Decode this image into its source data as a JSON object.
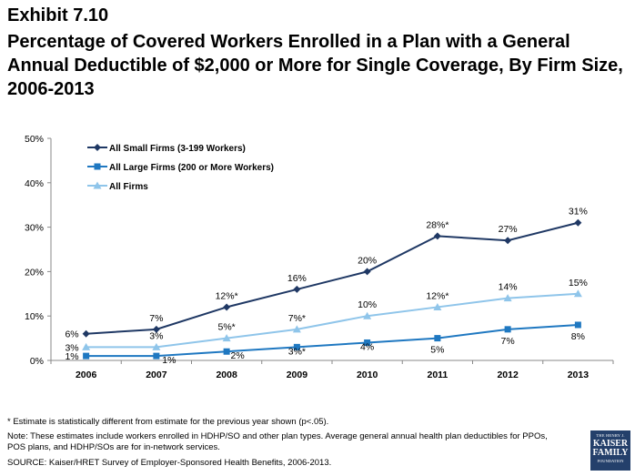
{
  "exhibit": "Exhibit 7.10",
  "title": "Percentage of Covered Workers Enrolled in a Plan with a General Annual Deductible of $2,000 or More for Single Coverage, By Firm Size, 2006-2013",
  "chart_data": {
    "type": "line",
    "categories": [
      "2006",
      "2007",
      "2008",
      "2009",
      "2010",
      "2011",
      "2012",
      "2013"
    ],
    "ylim": [
      0,
      50
    ],
    "yticks": [
      "0%",
      "10%",
      "20%",
      "30%",
      "40%",
      "50%"
    ],
    "ytick_values": [
      0,
      10,
      20,
      30,
      40,
      50
    ],
    "xlabel": "",
    "ylabel": "",
    "legend_position": "top-left",
    "series": [
      {
        "name": "All Small Firms (3-199 Workers)",
        "color": "#1f3864",
        "marker": "diamond",
        "values": [
          6,
          7,
          12,
          16,
          20,
          28,
          27,
          31
        ],
        "labels": [
          "6%",
          "7%",
          "12%*",
          "16%",
          "20%",
          "28%*",
          "27%",
          "31%"
        ]
      },
      {
        "name": "All Large Firms (200 or More Workers)",
        "color": "#1f78c1",
        "marker": "square",
        "values": [
          1,
          1,
          2,
          3,
          4,
          5,
          7,
          8
        ],
        "labels": [
          "1%",
          "1%",
          "2%",
          "3%*",
          "4%",
          "5%",
          "7%",
          "8%"
        ]
      },
      {
        "name": "All Firms",
        "color": "#8fc5ea",
        "marker": "triangle",
        "values": [
          3,
          3,
          5,
          7,
          10,
          12,
          14,
          15
        ],
        "labels": [
          "3%",
          "3%",
          "5%*",
          "7%*",
          "10%",
          "12%*",
          "14%",
          "15%"
        ]
      }
    ]
  },
  "footnotes": {
    "asterisk": "* Estimate is statistically different from estimate for the previous year shown (p<.05).",
    "note": "Note: These estimates include workers enrolled in HDHP/SO and other plan types.   Average general annual health plan deductibles for PPOs, POS plans, and HDHP/SOs are for in-network services.",
    "source": "SOURCE: Kaiser/HRET Survey of Employer-Sponsored Health Benefits, 2006-2013."
  },
  "logo": {
    "line1": "THE HENRY J.",
    "line2": "KAISER",
    "line3": "FAMILY",
    "line4": "FOUNDATION"
  }
}
